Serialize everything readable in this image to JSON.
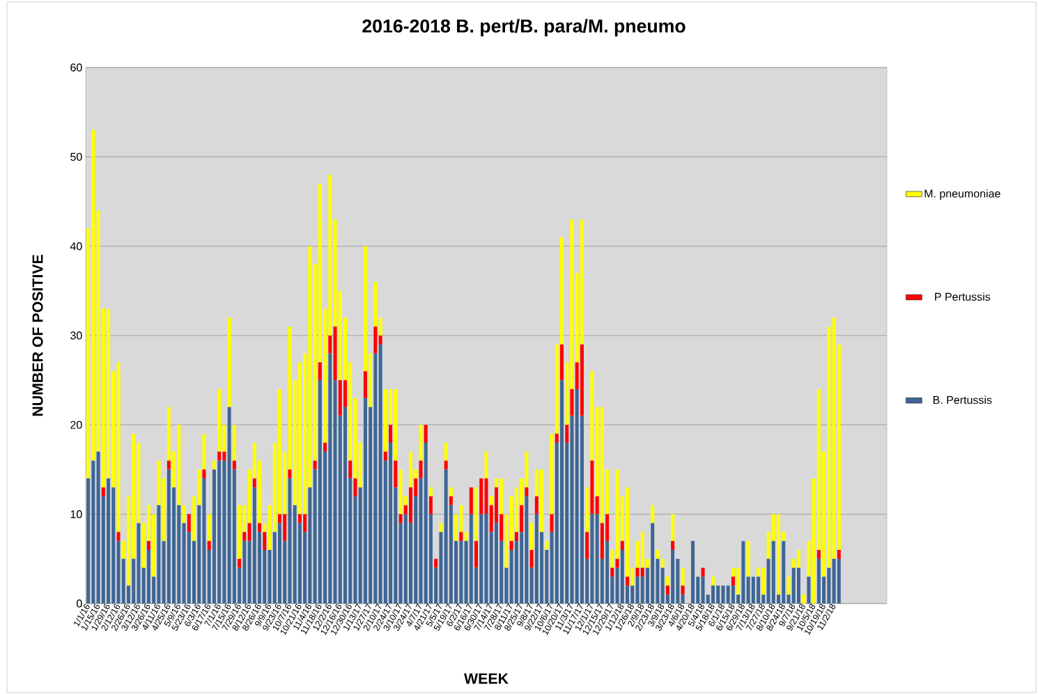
{
  "chart_data": {
    "type": "bar",
    "stacked": true,
    "title": "2016-2018 B. pert/B. para/M. pneumo",
    "xlabel": "WEEK",
    "ylabel": "NUMBER OF POSITIVE",
    "categories": [
      "1/1/16",
      null,
      "1/15/16",
      null,
      "1/29/16",
      null,
      "2/12/16",
      null,
      "2/26/16",
      null,
      "3/12/16",
      null,
      "3/26/16",
      null,
      "4/11/16",
      null,
      "4/25/16",
      null,
      "5/9/16",
      null,
      "5/23/16",
      null,
      "6/3/16",
      null,
      "6/17/16",
      null,
      "7/1/16",
      null,
      "7/15/16",
      null,
      "7/29/16",
      null,
      "8/12/16",
      null,
      "8/26/16",
      null,
      "9/9/16",
      null,
      "9/23/16",
      null,
      "10/7/16",
      null,
      "10/21/16",
      null,
      "11/4/16",
      null,
      "11/18/16",
      null,
      "12/2/16",
      null,
      "12/16/16",
      null,
      "12/30/16",
      null,
      "1/13/17",
      null,
      "1/27/17",
      null,
      "2/10/17",
      null,
      "2/24/17",
      null,
      "3/10/17",
      null,
      "3/24/17",
      null,
      "4/7/17",
      null,
      "4/21/17",
      null,
      "5/5/17",
      null,
      "5/19/17",
      null,
      "6/2/17",
      null,
      "6/16/17",
      null,
      "6/30/17",
      null,
      "7/14/17",
      null,
      "7/28/17",
      null,
      "8/11/17",
      null,
      "8/25/17",
      null,
      "9/8/17",
      null,
      "9/22/17",
      null,
      "10/6/17",
      null,
      "10/20/17",
      null,
      "11/3/17",
      null,
      "11/17/17",
      null,
      "12/1/17",
      null,
      "12/15/17",
      null,
      "12/29/17",
      null,
      "1/12/18",
      null,
      "1/26/18",
      null,
      "2/9/18",
      null,
      "2/23/18",
      null,
      "3/9/18",
      null,
      "3/23/18",
      null,
      "4/6/18",
      null,
      "4/20/18",
      null,
      "5/4/18",
      null,
      "5/18/18",
      null,
      "6/1/18",
      null,
      "6/15/18",
      null,
      "6/29/18",
      null,
      "7/13/18",
      null,
      "7/27/18",
      null,
      "8/10/18",
      null,
      "8/24/18",
      null,
      "9/7/18",
      null,
      "9/21/18",
      null,
      "10/5/18",
      null,
      "10/19/18",
      null,
      "11/2/18",
      null,
      null,
      null,
      null,
      null,
      null,
      null,
      null,
      null,
      null
    ],
    "series": [
      {
        "name": "B. Pertussis",
        "color": "#3d6696",
        "values": [
          14,
          16,
          17,
          12,
          14,
          13,
          7,
          5,
          2,
          5,
          9,
          4,
          6,
          3,
          11,
          7,
          15,
          13,
          11,
          9,
          8,
          7,
          11,
          14,
          6,
          15,
          16,
          16,
          22,
          15,
          4,
          7,
          7,
          13,
          8,
          6,
          6,
          8,
          9,
          7,
          14,
          11,
          9,
          8,
          13,
          15,
          25,
          17,
          28,
          25,
          21,
          22,
          14,
          12,
          13,
          23,
          22,
          28,
          29,
          16,
          18,
          13,
          9,
          10,
          9,
          12,
          14,
          18,
          10,
          4,
          8,
          15,
          11,
          7,
          7,
          7,
          10,
          4,
          10,
          10,
          8,
          9,
          7,
          4,
          6,
          7,
          8,
          12,
          4,
          10,
          8,
          6,
          8,
          18,
          25,
          18,
          21,
          24,
          21,
          5,
          10,
          10,
          5,
          7,
          3,
          4,
          6,
          2,
          2,
          3,
          3,
          4,
          9,
          5,
          4,
          1,
          6,
          5,
          1,
          0,
          7,
          3,
          3,
          1,
          2,
          2,
          2,
          2,
          2,
          1,
          7,
          3,
          3,
          3,
          1,
          5,
          7,
          1,
          7,
          1,
          4,
          4,
          0,
          3,
          0,
          5,
          3,
          4,
          5,
          5,
          null,
          null,
          null,
          null,
          null,
          null,
          null,
          null,
          null
        ]
      },
      {
        "name": "P Pertussis",
        "color": "#ff0000",
        "values": [
          0,
          0,
          0,
          1,
          0,
          0,
          1,
          0,
          0,
          0,
          0,
          0,
          1,
          0,
          0,
          0,
          1,
          0,
          0,
          0,
          2,
          0,
          0,
          1,
          1,
          0,
          1,
          1,
          0,
          1,
          1,
          1,
          2,
          1,
          1,
          2,
          0,
          0,
          1,
          3,
          1,
          0,
          1,
          2,
          0,
          1,
          2,
          1,
          2,
          6,
          4,
          3,
          2,
          2,
          0,
          3,
          0,
          3,
          1,
          1,
          2,
          3,
          1,
          1,
          4,
          2,
          2,
          2,
          2,
          1,
          0,
          1,
          1,
          0,
          1,
          0,
          3,
          3,
          4,
          4,
          3,
          4,
          3,
          0,
          1,
          1,
          3,
          1,
          2,
          2,
          0,
          0,
          2,
          1,
          4,
          2,
          3,
          3,
          8,
          3,
          6,
          2,
          4,
          3,
          1,
          1,
          1,
          1,
          0,
          1,
          1,
          0,
          0,
          0,
          0,
          1,
          1,
          0,
          1,
          0,
          0,
          0,
          1,
          0,
          0,
          0,
          0,
          0,
          1,
          0,
          0,
          0,
          0,
          0,
          0,
          0,
          0,
          0,
          0,
          0,
          0,
          0,
          0,
          0,
          0,
          1,
          0,
          0,
          0,
          1,
          null,
          null,
          null,
          null,
          null,
          null,
          null,
          null,
          null
        ]
      },
      {
        "name": "M. pneumoniae",
        "color": "#ffff00",
        "values": [
          28,
          37,
          27,
          20,
          19,
          13,
          19,
          2,
          10,
          14,
          9,
          5,
          4,
          7,
          5,
          7,
          6,
          4,
          9,
          2,
          0,
          5,
          4,
          4,
          3,
          1,
          7,
          3,
          10,
          4,
          6,
          3,
          6,
          4,
          7,
          1,
          5,
          10,
          14,
          7,
          16,
          14,
          17,
          18,
          27,
          22,
          20,
          15,
          18,
          12,
          10,
          7,
          11,
          9,
          5,
          14,
          6,
          5,
          2,
          7,
          4,
          8,
          5,
          1,
          4,
          1,
          4,
          0,
          1,
          0,
          1,
          2,
          1,
          3,
          3,
          1,
          0,
          6,
          0,
          3,
          1,
          1,
          4,
          6,
          5,
          5,
          3,
          4,
          3,
          3,
          7,
          1,
          9,
          10,
          12,
          7,
          19,
          10,
          14,
          5,
          10,
          10,
          13,
          5,
          2,
          10,
          5,
          10,
          2,
          3,
          4,
          1,
          2,
          1,
          1,
          1,
          3,
          0,
          2,
          0,
          0,
          0,
          0,
          0,
          1,
          0,
          0,
          0,
          1,
          3,
          0,
          4,
          0,
          1,
          3,
          3,
          3,
          9,
          1,
          2,
          1,
          2,
          1,
          4,
          14,
          18,
          14,
          27,
          27,
          23,
          null,
          null,
          null,
          null,
          null,
          null,
          null,
          null,
          null
        ]
      }
    ],
    "ylim": [
      0,
      60
    ],
    "yticks": [
      0,
      10,
      20,
      30,
      40,
      50,
      60
    ],
    "grid": "y",
    "legend": "right"
  }
}
